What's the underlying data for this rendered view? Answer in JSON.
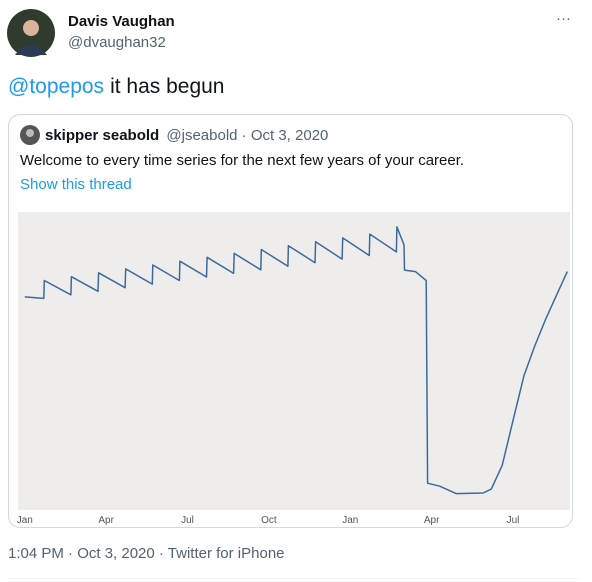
{
  "tweet": {
    "author_name": "Davis Vaughan",
    "author_handle": "@dvaughan32",
    "menu": "···",
    "mention": "@topepos",
    "text": "it has begun",
    "quote": {
      "author_name": "skipper seabold",
      "meta": "@jseabold · Oct 3, 2020",
      "text": "Welcome to every time series for the next few years of your career.",
      "link": "Show this thread"
    },
    "footer": "1:04 PM · Oct 3, 2020 · Twitter for iPhone"
  },
  "chart_data": {
    "type": "line",
    "color": "#3c6a9e",
    "background": "#eeedec",
    "x": [
      0,
      0.7,
      0.72,
      1.7,
      1.72,
      2.7,
      2.72,
      3.7,
      3.72,
      4.7,
      4.72,
      5.7,
      5.72,
      6.7,
      6.72,
      7.7,
      7.72,
      8.7,
      8.72,
      9.7,
      9.72,
      10.7,
      10.72,
      11.7,
      11.72,
      12.7,
      12.72,
      13.7,
      13.72,
      13.98,
      14.0,
      14.4,
      14.8,
      14.85,
      15.3,
      15.9,
      16.9,
      17.2,
      17.6,
      18.0,
      18.4,
      18.8,
      19.2,
      19.6,
      20.0
    ],
    "values": [
      71.5,
      71,
      77,
      72.2,
      78.3,
      73.4,
      79.6,
      74.6,
      80.9,
      75.8,
      82.2,
      77,
      83.5,
      78.2,
      84.8,
      79.4,
      86.1,
      80.6,
      87.4,
      81.8,
      88.7,
      83,
      90,
      84.2,
      91.3,
      85.4,
      92.6,
      86.6,
      95,
      89,
      80.5,
      80,
      77,
      9,
      8,
      5.5,
      5.7,
      7,
      15,
      30,
      45,
      55,
      64,
      72,
      80
    ],
    "xlim": [
      -0.25,
      20.1
    ],
    "ylim": [
      0,
      100
    ],
    "xticks": [
      {
        "value": 0,
        "label": "Jan"
      },
      {
        "value": 3,
        "label": "Apr"
      },
      {
        "value": 6,
        "label": "Jul"
      },
      {
        "value": 9,
        "label": "Oct"
      },
      {
        "value": 12,
        "label": "Jan"
      },
      {
        "value": 15,
        "label": "Apr"
      },
      {
        "value": 18,
        "label": "Jul"
      }
    ]
  }
}
